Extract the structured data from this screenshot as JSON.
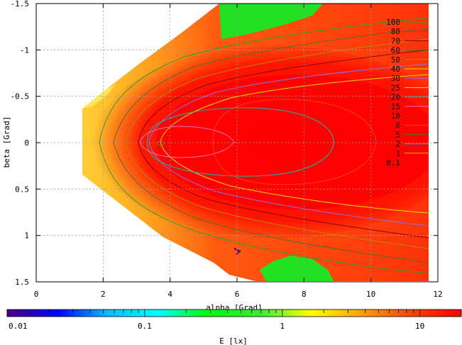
{
  "chart_data": {
    "type": "heatmap",
    "xlabel": "alpha [Grad]",
    "ylabel": "beta [Grad]",
    "xlim": [
      0,
      12
    ],
    "ylim": [
      -1.5,
      1.5
    ],
    "y_reversed": true,
    "grid": true,
    "x_ticks": [
      0,
      2,
      4,
      6,
      8,
      10,
      12
    ],
    "y_ticks": [
      -1.5,
      -1,
      -0.5,
      0,
      0.5,
      1,
      1.5
    ],
    "x_tick_labels": [
      "0",
      "2",
      "4",
      "6",
      "8",
      "10",
      "12"
    ],
    "y_tick_labels": [
      "-1.5",
      "-1",
      "-0.5",
      "0",
      "0.5",
      "1",
      "1.5"
    ],
    "contour_levels": [
      "100",
      "80",
      "70",
      "60",
      "50",
      "40",
      "30",
      "25",
      "20",
      "15",
      "10",
      "8",
      "5",
      "2",
      "1",
      "0.1"
    ],
    "contour_colors": [
      "#2ca02c",
      "#b03060",
      "#8b0000",
      "#228b22",
      "#b8860b",
      "#dddd00",
      "#9370db",
      "#ffd700",
      "#20b2aa",
      "#ff69b4",
      "#b22222",
      "#ff4500",
      "#556b2f",
      "#00bfff",
      "#daa520",
      "#ff0000"
    ],
    "legend_position": "top-right",
    "colorbar": {
      "label": "E [lx]",
      "scale": "log",
      "range": [
        0.01,
        20
      ],
      "tick_labels": [
        "0.01",
        "0.1",
        "1",
        "10"
      ],
      "tick_values": [
        0.01,
        0.1,
        1,
        10
      ],
      "colors": [
        "#4b0082",
        "#0000ff",
        "#00bfff",
        "#00ffff",
        "#00ff00",
        "#33ee33",
        "#ffff00",
        "#ffa500",
        "#ff4500",
        "#ff0000"
      ]
    },
    "region": {
      "left_tip": [
        1.4,
        -0.35,
        0.35
      ],
      "right_edge": 11.7,
      "upper_green_patch": "alpha 5.5-9.5, beta -1.5 to -1.15",
      "lower_green_patch": "alpha 7-9.5, beta 1.25 to 1.5"
    }
  }
}
